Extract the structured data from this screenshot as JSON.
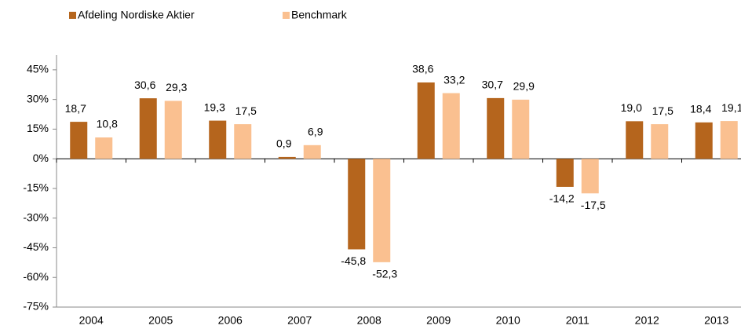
{
  "chart_data": {
    "type": "bar",
    "categories": [
      "2004",
      "2005",
      "2006",
      "2007",
      "2008",
      "2009",
      "2010",
      "2011",
      "2012",
      "2013"
    ],
    "series": [
      {
        "name": "Afdeling Nordiske Aktier",
        "color": "#b5651d",
        "values": [
          18.7,
          30.6,
          19.3,
          0.9,
          -45.8,
          38.6,
          30.7,
          -14.2,
          19.0,
          18.4
        ],
        "value_labels": [
          "18,7",
          "30,6",
          "19,3",
          "0,9",
          "-45,8",
          "38,6",
          "30,7",
          "-14,2",
          "19,0",
          "18,4"
        ]
      },
      {
        "name": "Benchmark",
        "color": "#fac090",
        "values": [
          10.8,
          29.3,
          17.5,
          6.9,
          -52.3,
          33.2,
          29.9,
          -17.5,
          17.5,
          19.1
        ],
        "value_labels": [
          "10,8",
          "29,3",
          "17,5",
          "6,9",
          "-52,3",
          "33,2",
          "29,9",
          "-17,5",
          "17,5",
          "19,1"
        ]
      }
    ],
    "ylim": [
      -75,
      52.5
    ],
    "yticks": [
      {
        "value": 45,
        "label": "45%"
      },
      {
        "value": 30,
        "label": "30%"
      },
      {
        "value": 15,
        "label": "15%"
      },
      {
        "value": 0,
        "label": "0%"
      },
      {
        "value": -15,
        "label": "-15%"
      },
      {
        "value": -30,
        "label": "-30%"
      },
      {
        "value": -45,
        "label": "-45%"
      },
      {
        "value": -60,
        "label": "-60%"
      },
      {
        "value": -75,
        "label": "-75%"
      }
    ],
    "legend": "top-left"
  }
}
